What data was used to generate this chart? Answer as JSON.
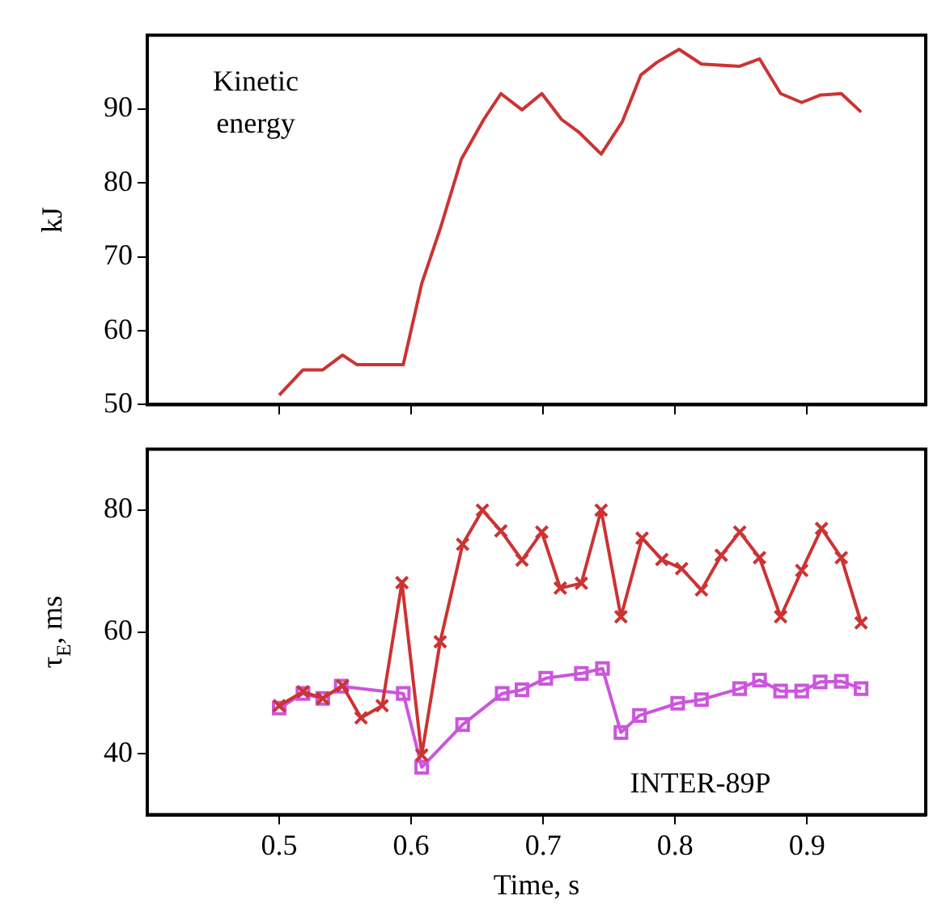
{
  "chart_data": [
    {
      "type": "line",
      "ylabel": "kJ",
      "annotations": [
        "Kinetic energy"
      ],
      "xlim": [
        0.4,
        0.99
      ],
      "xticks": [
        0.5,
        0.6,
        0.7,
        0.8,
        0.9
      ],
      "ylim": [
        50,
        100
      ],
      "yticks": [
        50,
        60,
        70,
        80,
        90
      ],
      "tick_labels": "y",
      "grid": false,
      "series": [
        {
          "color": "#cc3333",
          "x": [
            0.5,
            0.518,
            0.533,
            0.548,
            0.559,
            0.594,
            0.608,
            0.622,
            0.638,
            0.655,
            0.668,
            0.684,
            0.699,
            0.714,
            0.727,
            0.744,
            0.76,
            0.774,
            0.786,
            0.803,
            0.82,
            0.849,
            0.864,
            0.88,
            0.896,
            0.91,
            0.926,
            0.941
          ],
          "values": [
            51.3,
            54.7,
            54.7,
            56.7,
            55.4,
            55.4,
            66.4,
            73.8,
            83.2,
            88.6,
            92.1,
            89.9,
            92.1,
            88.6,
            86.9,
            83.9,
            88.3,
            94.6,
            96.3,
            98.1,
            96.1,
            95.8,
            96.8,
            92.1,
            90.9,
            91.9,
            92.1,
            89.6
          ]
        }
      ]
    },
    {
      "type": "line",
      "xlabel": "Time, s",
      "ylabel": "τ$_{E}$, ms",
      "xlim": [
        0.4,
        0.99
      ],
      "xticks": [
        0.5,
        0.6,
        0.7,
        0.8,
        0.9
      ],
      "ylim": [
        30,
        90
      ],
      "yticks": [
        40,
        60,
        80
      ],
      "grid": false,
      "series": [
        {
          "color": "#cc3333",
          "marker": "cross",
          "x": [
            0.5,
            0.518,
            0.533,
            0.548,
            0.562,
            0.578,
            0.593,
            0.608,
            0.622,
            0.639,
            0.654,
            0.668,
            0.684,
            0.699,
            0.713,
            0.729,
            0.744,
            0.759,
            0.775,
            0.79,
            0.805,
            0.82,
            0.835,
            0.849,
            0.864,
            0.88,
            0.896,
            0.911,
            0.926,
            0.941
          ],
          "values": [
            47.9,
            50.2,
            49.1,
            51.2,
            45.9,
            47.9,
            68.1,
            39.8,
            58.4,
            74.4,
            80.0,
            76.6,
            71.8,
            76.4,
            67.2,
            68.0,
            80.0,
            62.5,
            75.4,
            71.9,
            70.4,
            66.9,
            72.6,
            76.4,
            72.2,
            62.5,
            70.1,
            77.0,
            72.2,
            61.5
          ]
        },
        {
          "name": "INTER-89P",
          "color": "#cc55dd",
          "marker": "square",
          "x": [
            0.5,
            0.518,
            0.533,
            0.547,
            0.594,
            0.608,
            0.639,
            0.669,
            0.684,
            0.702,
            0.729,
            0.745,
            0.759,
            0.773,
            0.802,
            0.82,
            0.849,
            0.864,
            0.88,
            0.896,
            0.91,
            0.926,
            0.941
          ],
          "values": [
            47.5,
            49.9,
            49.1,
            51.1,
            49.9,
            37.8,
            44.8,
            49.9,
            50.5,
            52.4,
            53.2,
            54.0,
            43.5,
            46.3,
            48.3,
            48.9,
            50.7,
            52.1,
            50.3,
            50.3,
            51.8,
            51.9,
            50.7
          ]
        }
      ]
    }
  ]
}
